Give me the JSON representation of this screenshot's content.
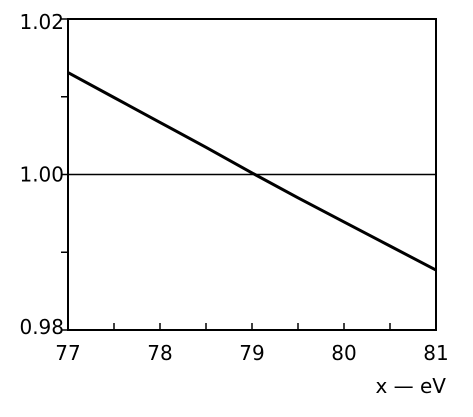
{
  "chart_data": {
    "type": "line",
    "title": "",
    "xlabel": "x — eV",
    "ylabel": "",
    "xlim": [
      77,
      81
    ],
    "ylim": [
      0.98,
      1.02
    ],
    "x_ticks": [
      77,
      77.5,
      78,
      78.5,
      79,
      79.5,
      80,
      80.5,
      81
    ],
    "x_tick_labels": [
      "77",
      "78",
      "79",
      "80",
      "81"
    ],
    "x_tick_label_values": [
      77,
      78,
      79,
      80,
      81
    ],
    "y_ticks": [
      0.98,
      0.99,
      1.0,
      1.01,
      1.02
    ],
    "y_tick_labels": [
      "0.98",
      "1.00",
      "1.02"
    ],
    "y_tick_label_values": [
      0.98,
      1.0,
      1.02
    ],
    "reference_line": {
      "y": 1.0
    },
    "grid": false,
    "series": [
      {
        "x": [
          77,
          77.5,
          78,
          78.5,
          79,
          79.5,
          80,
          80.5,
          81
        ],
        "y": [
          1.0131,
          1.0099,
          1.0067,
          1.0035,
          1.0002,
          0.997,
          0.9939,
          0.9908,
          0.9877
        ]
      }
    ]
  }
}
